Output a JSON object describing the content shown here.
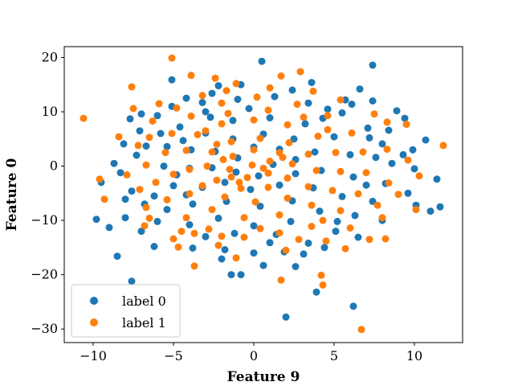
{
  "chart_data": {
    "type": "scatter",
    "title": "",
    "xlabel": "Feature 9",
    "ylabel": "Feature 0",
    "xlim": [
      -11.8,
      13.0
    ],
    "ylim": [
      -32.5,
      22.0
    ],
    "xticks": [
      -10,
      -5,
      0,
      5,
      10
    ],
    "xtick_labels": [
      "−10",
      "−5",
      "0",
      "5",
      "10"
    ],
    "yticks": [
      -30,
      -20,
      -10,
      0,
      10,
      20
    ],
    "ytick_labels": [
      "−30",
      "−20",
      "−10",
      "0",
      "10",
      "20"
    ],
    "grid": false,
    "legend_position": "lower-left",
    "series": [
      {
        "name": "label 0",
        "color": "#1f77b4",
        "points": [
          [
            0.5,
            19.3
          ],
          [
            7.4,
            18.6
          ],
          [
            -5.1,
            15.9
          ],
          [
            -2.2,
            14.8
          ],
          [
            3.6,
            15.4
          ],
          [
            -0.8,
            15.0
          ],
          [
            -7.7,
            8.7
          ],
          [
            -7.1,
            6.5
          ],
          [
            -8.3,
            -1.2
          ],
          [
            -9.5,
            -3.0
          ],
          [
            -9.8,
            -9.8
          ],
          [
            -9.0,
            -11.3
          ],
          [
            -8.0,
            -9.5
          ],
          [
            -7.0,
            -12.0
          ],
          [
            -6.2,
            -14.8
          ],
          [
            -8.5,
            -16.6
          ],
          [
            -7.6,
            -21.2
          ],
          [
            2.0,
            -27.8
          ],
          [
            3.9,
            -23.2
          ],
          [
            6.2,
            -25.8
          ],
          [
            -1.4,
            -20.0
          ],
          [
            -0.8,
            -20.0
          ],
          [
            0.6,
            -18.3
          ],
          [
            2.6,
            -18.5
          ],
          [
            11.6,
            -7.5
          ],
          [
            11.0,
            -8.3
          ],
          [
            10.1,
            -7.2
          ],
          [
            11.4,
            -2.4
          ],
          [
            10.7,
            4.8
          ],
          [
            9.3,
            2.1
          ],
          [
            9.4,
            8.8
          ],
          [
            8.4,
            6.6
          ],
          [
            7.4,
            12.0
          ],
          [
            6.6,
            14.2
          ],
          [
            5.7,
            12.2
          ],
          [
            4.6,
            10.5
          ],
          [
            -4.2,
            12.5
          ],
          [
            -3.2,
            11.7
          ],
          [
            -6.0,
            9.3
          ],
          [
            -6.7,
            3.7
          ],
          [
            -6.2,
            -5.5
          ],
          [
            -5.4,
            -8.0
          ],
          [
            -4.0,
            -10.8
          ],
          [
            -3.0,
            -13.0
          ],
          [
            -1.8,
            -15.4
          ],
          [
            0.0,
            -16.0
          ],
          [
            1.9,
            -15.8
          ],
          [
            3.4,
            -14.2
          ],
          [
            5.1,
            -12.0
          ],
          [
            6.3,
            -9.1
          ],
          [
            7.4,
            -6.5
          ],
          [
            8.2,
            -3.2
          ],
          [
            8.6,
            0.5
          ],
          [
            8.0,
            4.1
          ],
          [
            7.1,
            7.0
          ],
          [
            5.5,
            9.8
          ],
          [
            3.4,
            11.6
          ],
          [
            1.3,
            12.8
          ],
          [
            -1.0,
            12.3
          ],
          [
            -3.0,
            10.0
          ],
          [
            -4.6,
            7.2
          ],
          [
            -5.4,
            3.6
          ],
          [
            -5.6,
            0.0
          ],
          [
            -5.0,
            -3.6
          ],
          [
            -3.8,
            -7.0
          ],
          [
            -2.2,
            -9.6
          ],
          [
            0.0,
            -11.0
          ],
          [
            2.3,
            -10.2
          ],
          [
            4.1,
            -8.3
          ],
          [
            5.5,
            -5.6
          ],
          [
            6.2,
            -2.0
          ],
          [
            6.0,
            2.1
          ],
          [
            5.0,
            5.4
          ],
          [
            3.2,
            7.8
          ],
          [
            1.0,
            8.9
          ],
          [
            -1.3,
            8.4
          ],
          [
            -3.0,
            6.1
          ],
          [
            -3.9,
            3.0
          ],
          [
            -4.0,
            -0.4
          ],
          [
            -3.2,
            -3.9
          ],
          [
            -1.7,
            -6.5
          ],
          [
            0.4,
            -7.4
          ],
          [
            2.4,
            -6.4
          ],
          [
            3.7,
            -4.0
          ],
          [
            4.2,
            -0.8
          ],
          [
            3.8,
            2.6
          ],
          [
            2.5,
            5.0
          ],
          [
            0.6,
            5.9
          ],
          [
            -1.3,
            5.0
          ],
          [
            -2.4,
            2.7
          ],
          [
            -2.6,
            -0.3
          ],
          [
            -1.8,
            -3.0
          ],
          [
            -0.2,
            -4.3
          ],
          [
            1.6,
            -3.5
          ],
          [
            2.6,
            -1.4
          ],
          [
            2.6,
            1.2
          ],
          [
            1.6,
            3.1
          ],
          [
            0.0,
            3.5
          ],
          [
            -1.0,
            1.5
          ],
          [
            -1.1,
            -1.1
          ],
          [
            0.3,
            -1.8
          ],
          [
            1.2,
            0.3
          ],
          [
            -7.3,
            2.0
          ],
          [
            -7.6,
            -4.6
          ],
          [
            -6.8,
            -7.0
          ],
          [
            -5.8,
            6.0
          ],
          [
            -2.0,
            -17.1
          ],
          [
            1.0,
            -14.1
          ],
          [
            4.4,
            -15.0
          ],
          [
            6.5,
            -13.1
          ],
          [
            8.0,
            -10.0
          ],
          [
            9.6,
            -5.0
          ],
          [
            10.0,
            -0.5
          ],
          [
            9.9,
            3.0
          ],
          [
            8.9,
            10.2
          ],
          [
            6.1,
            11.4
          ],
          [
            2.4,
            14.0
          ],
          [
            -2.6,
            13.4
          ],
          [
            -5.1,
            11.0
          ],
          [
            -7.0,
            9.6
          ],
          [
            -8.1,
            4.1
          ],
          [
            -8.7,
            0.5
          ],
          [
            -8.0,
            -6.1
          ],
          [
            -6.0,
            -10.2
          ],
          [
            3.1,
            -16.2
          ],
          [
            -3.8,
            -15.1
          ],
          [
            -1.2,
            -12.4
          ],
          [
            1.4,
            -12.6
          ],
          [
            5.2,
            -10.2
          ],
          [
            7.0,
            -3.5
          ],
          [
            7.6,
            1.6
          ],
          [
            7.2,
            5.2
          ],
          [
            4.3,
            8.8
          ],
          [
            -0.3,
            10.6
          ],
          [
            -2.7,
            9.0
          ],
          [
            -4.4,
            4.7
          ],
          [
            -4.8,
            -1.6
          ],
          [
            -4.2,
            -5.3
          ]
        ]
      },
      {
        "name": "label 1",
        "color": "#ff7f0e",
        "points": [
          [
            -10.6,
            8.8
          ],
          [
            -5.1,
            19.9
          ],
          [
            11.8,
            3.8
          ],
          [
            10.3,
            -1.8
          ],
          [
            10.1,
            -8.0
          ],
          [
            6.7,
            -30.1
          ],
          [
            1.7,
            -21.0
          ],
          [
            4.3,
            -21.9
          ],
          [
            4.2,
            -20.1
          ],
          [
            -3.7,
            -18.4
          ],
          [
            -9.6,
            -2.4
          ],
          [
            -9.3,
            -6.1
          ],
          [
            -7.5,
            10.6
          ],
          [
            -7.6,
            14.6
          ],
          [
            -7.2,
            3.8
          ],
          [
            -8.4,
            5.4
          ],
          [
            -7.1,
            -4.3
          ],
          [
            -6.7,
            -7.6
          ],
          [
            -2.4,
            16.2
          ],
          [
            -1.1,
            15.2
          ],
          [
            1.7,
            16.6
          ],
          [
            2.9,
            17.4
          ],
          [
            3.7,
            13.8
          ],
          [
            -3.9,
            16.7
          ],
          [
            8.3,
            8.1
          ],
          [
            9.5,
            7.7
          ],
          [
            9.6,
            1.1
          ],
          [
            9.0,
            -5.2
          ],
          [
            8.0,
            -9.5
          ],
          [
            7.2,
            -13.5
          ],
          [
            8.2,
            -13.4
          ],
          [
            5.7,
            -15.2
          ],
          [
            -5.0,
            -13.4
          ],
          [
            -4.7,
            -14.9
          ],
          [
            -6.8,
            -11.0
          ],
          [
            -2.2,
            -14.6
          ],
          [
            -4.8,
            10.7
          ],
          [
            -3.2,
            13.0
          ],
          [
            -6.3,
            8.3
          ],
          [
            -6.7,
            0.2
          ],
          [
            -6.1,
            -3.0
          ],
          [
            -5.4,
            -6.2
          ],
          [
            -4.2,
            -9.5
          ],
          [
            -2.8,
            -11.6
          ],
          [
            -0.6,
            -13.1
          ],
          [
            1.6,
            -12.3
          ],
          [
            3.6,
            -11.1
          ],
          [
            5.4,
            -8.2
          ],
          [
            6.5,
            -5.1
          ],
          [
            7.0,
            -1.2
          ],
          [
            6.8,
            2.6
          ],
          [
            6.1,
            6.1
          ],
          [
            4.6,
            9.3
          ],
          [
            2.7,
            11.4
          ],
          [
            0.2,
            12.7
          ],
          [
            -2.0,
            11.6
          ],
          [
            -3.9,
            9.2
          ],
          [
            -5.1,
            6.0
          ],
          [
            -5.5,
            2.5
          ],
          [
            -5.0,
            -1.5
          ],
          [
            -4.0,
            -5.1
          ],
          [
            -2.6,
            -8.0
          ],
          [
            -0.6,
            -9.5
          ],
          [
            1.6,
            -9.0
          ],
          [
            3.6,
            -7.2
          ],
          [
            4.9,
            -4.5
          ],
          [
            5.4,
            -1.0
          ],
          [
            5.1,
            2.5
          ],
          [
            4.0,
            5.5
          ],
          [
            2.1,
            7.6
          ],
          [
            0.0,
            8.5
          ],
          [
            -2.0,
            7.8
          ],
          [
            -3.5,
            5.8
          ],
          [
            -4.2,
            2.9
          ],
          [
            -4.0,
            -0.6
          ],
          [
            -3.2,
            -3.6
          ],
          [
            -1.8,
            -5.7
          ],
          [
            0.1,
            -6.6
          ],
          [
            2.1,
            -5.9
          ],
          [
            3.4,
            -3.8
          ],
          [
            3.9,
            -0.8
          ],
          [
            3.4,
            2.2
          ],
          [
            2.2,
            4.3
          ],
          [
            0.4,
            5.1
          ],
          [
            -1.4,
            4.5
          ],
          [
            -2.6,
            2.6
          ],
          [
            -2.9,
            0.0
          ],
          [
            -2.3,
            -2.6
          ],
          [
            -0.8,
            -4.1
          ],
          [
            0.9,
            -3.9
          ],
          [
            2.1,
            -2.2
          ],
          [
            2.4,
            0.4
          ],
          [
            1.6,
            2.5
          ],
          [
            0.0,
            3.0
          ],
          [
            -1.3,
            1.8
          ],
          [
            -1.5,
            -0.6
          ],
          [
            -0.4,
            -2.1
          ],
          [
            0.9,
            -1.3
          ],
          [
            1.0,
            0.9
          ],
          [
            -0.1,
            0.2
          ],
          [
            -1.6,
            9.7
          ],
          [
            0.9,
            10.3
          ],
          [
            3.1,
            9.0
          ],
          [
            4.6,
            6.7
          ],
          [
            -3.7,
            -12.4
          ],
          [
            -1.1,
            -16.9
          ],
          [
            2.0,
            -15.5
          ],
          [
            4.5,
            -13.8
          ],
          [
            6.0,
            -11.4
          ],
          [
            7.7,
            -7.2
          ],
          [
            8.4,
            -3.1
          ],
          [
            8.3,
            3.1
          ],
          [
            7.5,
            9.6
          ],
          [
            5.4,
            12.2
          ],
          [
            1.0,
            14.4
          ],
          [
            -1.7,
            13.9
          ],
          [
            -5.9,
            11.5
          ],
          [
            -6.5,
            5.3
          ],
          [
            -7.9,
            -1.6
          ],
          [
            -6.5,
            -9.6
          ],
          [
            -4.5,
            -12.0
          ],
          [
            -2.0,
            -12.9
          ],
          [
            0.4,
            -11.5
          ],
          [
            2.8,
            -13.5
          ],
          [
            4.3,
            -10.0
          ],
          [
            -3.0,
            6.5
          ],
          [
            -2.3,
            4.0
          ],
          [
            -1.9,
            1.2
          ],
          [
            -1.4,
            -2.0
          ],
          [
            -0.9,
            -3.0
          ],
          [
            0.6,
            -0.4
          ],
          [
            1.8,
            1.6
          ]
        ]
      }
    ]
  }
}
